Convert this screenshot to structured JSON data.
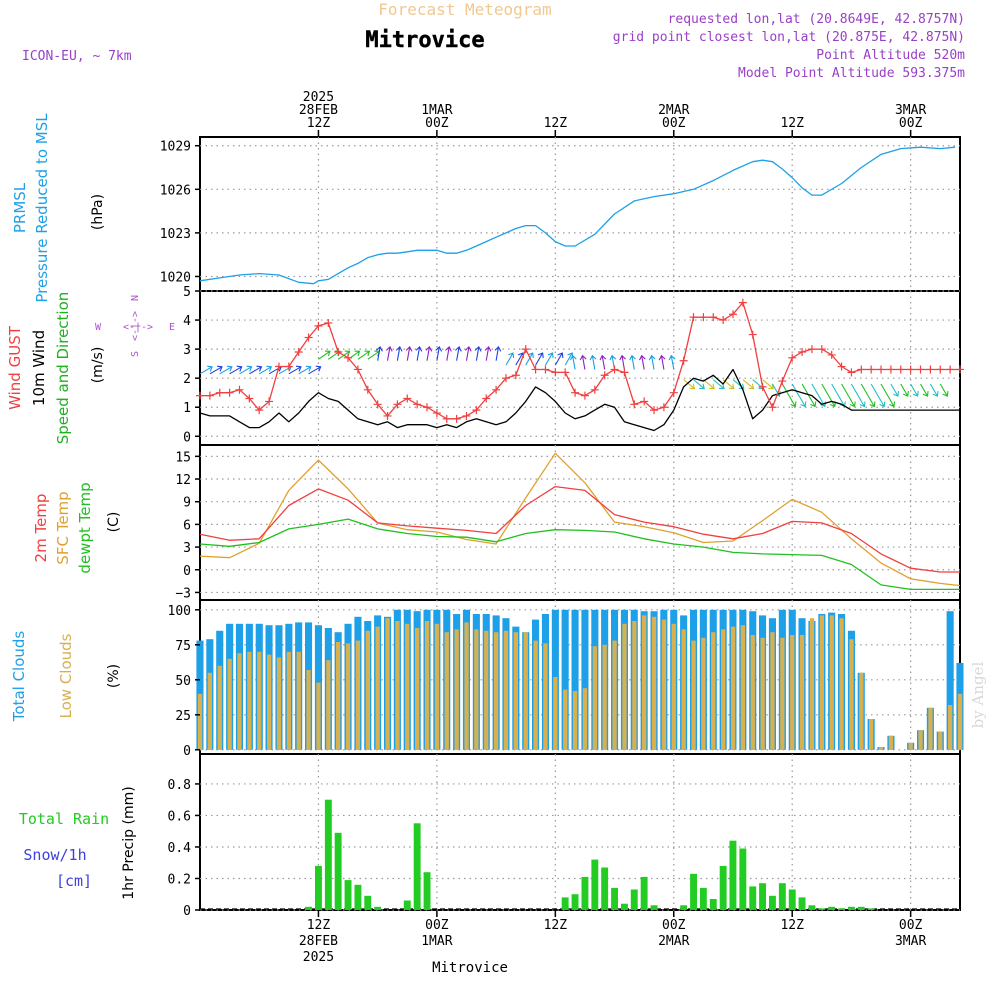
{
  "header": {
    "forecast_title": "Forecast Meteogram",
    "location": "Mitrovice",
    "model": "ICON-EU, ~ 7km",
    "requested": "requested lon,lat (20.8649E, 42.8757N)",
    "grid_point": "grid point closest lon,lat (20.875E, 42.875N)",
    "point_altitude": "Point Altitude 520m",
    "model_altitude": "Model Point Altitude 593.375m",
    "footer": "Mitrovice",
    "watermark": "by Angel"
  },
  "colors": {
    "pressure": "#1ea0e8",
    "gust": "#f04040",
    "wind": "#000000",
    "wind_label": "#20b020",
    "temp2m": "#f04040",
    "sfc": "#e0a030",
    "dewpt": "#20c020",
    "total_cloud": "#1ea0e8",
    "low_cloud": "#d8b050",
    "rain": "#22cc22",
    "snow": "#4040e0",
    "header": "#9a3fc7",
    "forecast_title": "#f0c890",
    "compass": "#b050d0",
    "arrow_palette": [
      "#2040e0",
      "#18a0e0",
      "#20c020",
      "#9020c0",
      "#d0c020",
      "#20c0c0"
    ]
  },
  "time_axis": {
    "top_ticks": [
      {
        "hour": 12,
        "lines": [
          "2025",
          "28FEB",
          "12Z"
        ]
      },
      {
        "hour": 24,
        "lines": [
          "1MAR",
          "00Z"
        ]
      },
      {
        "hour": 36,
        "lines": [
          "12Z"
        ]
      },
      {
        "hour": 48,
        "lines": [
          "2MAR",
          "00Z"
        ]
      },
      {
        "hour": 60,
        "lines": [
          "12Z"
        ]
      },
      {
        "hour": 72,
        "lines": [
          "3MAR",
          "00Z"
        ]
      }
    ],
    "bottom_ticks": [
      {
        "hour": 12,
        "lines": [
          "12Z",
          "28FEB",
          "2025"
        ]
      },
      {
        "hour": 24,
        "lines": [
          "00Z",
          "1MAR"
        ]
      },
      {
        "hour": 36,
        "lines": [
          "12Z"
        ]
      },
      {
        "hour": 48,
        "lines": [
          "00Z",
          "2MAR"
        ]
      },
      {
        "hour": 60,
        "lines": [
          "12Z"
        ]
      },
      {
        "hour": 72,
        "lines": [
          "00Z",
          "3MAR"
        ]
      }
    ],
    "xlim": [
      0,
      77
    ]
  },
  "chart_data": [
    {
      "type": "line",
      "panel": "pressure",
      "labels": [
        "PRMSL",
        "Pressure Reduced to MSL"
      ],
      "ylabel": "(hPa)",
      "yticks": [
        1020,
        1023,
        1026,
        1029
      ],
      "ylim": [
        1019.0,
        1029.6
      ],
      "x": [
        0,
        2,
        4,
        6,
        8,
        10,
        11.5,
        12,
        13,
        14,
        15,
        16,
        17,
        18,
        19,
        20,
        21,
        22,
        23,
        24,
        25,
        26,
        27,
        28,
        29,
        30,
        31,
        32,
        33,
        34,
        35,
        36,
        37,
        38,
        40,
        42,
        44,
        46,
        48,
        50,
        52,
        54,
        56,
        57,
        58,
        59,
        60,
        61,
        62,
        63,
        65,
        67,
        69,
        71,
        73,
        75,
        76.5
      ],
      "values": [
        1019.7,
        1019.9,
        1020.1,
        1020.2,
        1020.1,
        1019.6,
        1019.5,
        1019.7,
        1019.8,
        1020.2,
        1020.6,
        1020.9,
        1021.3,
        1021.5,
        1021.6,
        1021.6,
        1021.7,
        1021.8,
        1021.8,
        1021.8,
        1021.6,
        1021.6,
        1021.8,
        1022.1,
        1022.4,
        1022.7,
        1023.0,
        1023.3,
        1023.5,
        1023.5,
        1023.0,
        1022.4,
        1022.1,
        1022.1,
        1022.9,
        1024.3,
        1025.2,
        1025.5,
        1025.7,
        1026.0,
        1026.6,
        1027.3,
        1027.9,
        1028.0,
        1027.9,
        1027.4,
        1026.8,
        1026.1,
        1025.6,
        1025.6,
        1026.4,
        1027.5,
        1028.4,
        1028.8,
        1028.9,
        1028.8,
        1028.9
      ]
    },
    {
      "type": "line",
      "panel": "wind",
      "labels": [
        "Wind GUST",
        "10m Wind",
        "Speed and Direction"
      ],
      "ylabel": "(m/s)",
      "compass": {
        "west": "W",
        "east": "E",
        "north": "N",
        "south": "S",
        "arrow": "<-|->"
      },
      "yticks": [
        0,
        1,
        2,
        3,
        4,
        5
      ],
      "ylim": [
        -0.3,
        5
      ],
      "x": [
        0,
        1,
        2,
        3,
        4,
        5,
        6,
        7,
        8,
        9,
        10,
        11,
        12,
        13,
        14,
        15,
        16,
        17,
        18,
        19,
        20,
        21,
        22,
        23,
        24,
        25,
        26,
        27,
        28,
        29,
        30,
        31,
        32,
        33,
        34,
        35,
        36,
        37,
        38,
        39,
        40,
        41,
        42,
        43,
        44,
        45,
        46,
        47,
        48,
        49,
        50,
        51,
        52,
        53,
        54,
        55,
        56,
        57,
        58,
        59,
        60,
        61,
        62,
        63,
        64,
        65,
        66,
        67,
        68,
        69,
        70,
        71,
        72,
        73,
        74,
        75,
        76,
        77
      ],
      "series": [
        {
          "name": "Wind GUST",
          "values": [
            1.4,
            1.4,
            1.5,
            1.5,
            1.6,
            1.3,
            0.9,
            1.2,
            2.4,
            2.4,
            2.9,
            3.4,
            3.8,
            3.9,
            2.9,
            2.7,
            2.3,
            1.6,
            1.1,
            0.7,
            1.1,
            1.3,
            1.1,
            1.0,
            0.8,
            0.6,
            0.6,
            0.7,
            0.9,
            1.3,
            1.6,
            2.0,
            2.1,
            3.0,
            2.3,
            2.3,
            2.2,
            2.2,
            1.5,
            1.4,
            1.6,
            2.1,
            2.3,
            2.2,
            1.1,
            1.2,
            0.9,
            1.0,
            1.5,
            2.6,
            4.1,
            4.1,
            4.1,
            4.0,
            4.2,
            4.6,
            3.5,
            1.7,
            1.0,
            1.9,
            2.7,
            2.9,
            3.0,
            3.0,
            2.8,
            2.4,
            2.2,
            2.3,
            2.3,
            2.3,
            2.3,
            2.3,
            2.3,
            2.3,
            2.3,
            2.3,
            2.3,
            2.3
          ]
        },
        {
          "name": "10m Wind",
          "values": [
            0.8,
            0.7,
            0.7,
            0.7,
            0.5,
            0.3,
            0.3,
            0.5,
            0.8,
            0.5,
            0.8,
            1.2,
            1.5,
            1.3,
            1.2,
            0.9,
            0.6,
            0.5,
            0.4,
            0.5,
            0.3,
            0.4,
            0.4,
            0.4,
            0.3,
            0.4,
            0.3,
            0.5,
            0.6,
            0.5,
            0.4,
            0.5,
            0.8,
            1.2,
            1.7,
            1.5,
            1.2,
            0.8,
            0.6,
            0.7,
            0.9,
            1.1,
            1.0,
            0.5,
            0.4,
            0.3,
            0.2,
            0.4,
            0.9,
            1.7,
            2.0,
            1.9,
            2.1,
            1.8,
            2.3,
            1.6,
            0.6,
            0.9,
            1.4,
            1.5,
            1.6,
            1.5,
            1.4,
            1.1,
            1.2,
            1.1,
            0.9,
            0.9,
            0.9,
            0.9,
            0.9,
            0.9,
            0.9,
            0.9,
            0.9,
            0.9,
            0.9,
            0.9
          ]
        }
      ]
    },
    {
      "type": "line",
      "panel": "temperature",
      "labels": [
        "2m Temp",
        "SFC Temp",
        "dewpt Temp"
      ],
      "ylabel": "(C)",
      "yticks": [
        -3,
        0,
        3,
        6,
        9,
        12,
        15
      ],
      "ylim": [
        -4,
        16.5
      ],
      "x": [
        0,
        3,
        6,
        9,
        12,
        15,
        18,
        21,
        24,
        27,
        30,
        33,
        36,
        39,
        42,
        45,
        48,
        51,
        54,
        57,
        60,
        63,
        66,
        69,
        72,
        75,
        77
      ],
      "series": [
        {
          "name": "2m Temp",
          "values": [
            4.7,
            3.9,
            4.1,
            8.5,
            10.7,
            9.2,
            6.2,
            5.8,
            5.5,
            5.2,
            4.8,
            8.5,
            11.0,
            10.5,
            7.3,
            6.3,
            5.7,
            4.7,
            4.1,
            4.8,
            6.4,
            6.2,
            4.8,
            2.1,
            0.2,
            -0.3,
            -0.3
          ]
        },
        {
          "name": "SFC Temp",
          "values": [
            1.8,
            1.6,
            3.5,
            10.5,
            14.5,
            10.7,
            6.2,
            5.3,
            5.0,
            4.0,
            3.4,
            9.5,
            15.4,
            11.5,
            6.3,
            5.7,
            4.9,
            3.6,
            3.8,
            6.5,
            9.3,
            7.6,
            4.1,
            0.9,
            -1.2,
            -1.8,
            -2.1
          ]
        },
        {
          "name": "dewpt Temp",
          "values": [
            3.4,
            3.1,
            3.6,
            5.4,
            6.0,
            6.7,
            5.4,
            4.8,
            4.4,
            4.3,
            3.7,
            4.8,
            5.3,
            5.2,
            5.0,
            4.1,
            3.4,
            3.0,
            2.3,
            2.1,
            2.0,
            1.9,
            0.7,
            -2.0,
            -2.6,
            -2.6,
            -2.6
          ]
        }
      ]
    },
    {
      "type": "bar",
      "panel": "clouds",
      "labels": [
        "Total Clouds",
        "Low Clouds"
      ],
      "ylabel": "(%)",
      "yticks": [
        0,
        25,
        50,
        75,
        100
      ],
      "ylim": [
        -3,
        107
      ],
      "x": [
        0,
        1,
        2,
        3,
        4,
        5,
        6,
        7,
        8,
        9,
        10,
        11,
        12,
        13,
        14,
        15,
        16,
        17,
        18,
        19,
        20,
        21,
        22,
        23,
        24,
        25,
        26,
        27,
        28,
        29,
        30,
        31,
        32,
        33,
        34,
        35,
        36,
        37,
        38,
        39,
        40,
        41,
        42,
        43,
        44,
        45,
        46,
        47,
        48,
        49,
        50,
        51,
        52,
        53,
        54,
        55,
        56,
        57,
        58,
        59,
        60,
        61,
        62,
        63,
        64,
        65,
        66,
        67,
        68,
        69,
        70,
        71,
        72,
        73,
        74,
        75,
        76,
        77
      ],
      "series": [
        {
          "name": "Total Clouds",
          "values": [
            78,
            79,
            85,
            90,
            90,
            90,
            90,
            89,
            89,
            90,
            91,
            91,
            89,
            87,
            84,
            90,
            95,
            92,
            96,
            95,
            100,
            100,
            99,
            100,
            100,
            100,
            97,
            100,
            97,
            97,
            96,
            94,
            88,
            84,
            93,
            97,
            100,
            100,
            100,
            100,
            100,
            100,
            100,
            100,
            100,
            99,
            99,
            100,
            100,
            96,
            100,
            100,
            100,
            100,
            100,
            100,
            99,
            96,
            94,
            100,
            100,
            94,
            92,
            97,
            98,
            97,
            85,
            55,
            22,
            2,
            10,
            0,
            5,
            14,
            30,
            13,
            99,
            62
          ]
        },
        {
          "name": "Low Clouds",
          "values": [
            40,
            55,
            60,
            65,
            69,
            70,
            70,
            68,
            66,
            70,
            70,
            57,
            48,
            64,
            77,
            76,
            78,
            85,
            88,
            94,
            92,
            90,
            87,
            92,
            90,
            84,
            86,
            91,
            86,
            85,
            84,
            85,
            84,
            84,
            78,
            76,
            52,
            43,
            42,
            44,
            74,
            75,
            78,
            90,
            92,
            96,
            95,
            93,
            90,
            86,
            78,
            80,
            84,
            86,
            88,
            89,
            82,
            80,
            84,
            80,
            82,
            82,
            94,
            96,
            96,
            94,
            79,
            55,
            22,
            2,
            10,
            0,
            5,
            14,
            30,
            13,
            32,
            40
          ]
        }
      ]
    },
    {
      "type": "bar",
      "panel": "precipitation",
      "labels": [
        "Total Rain",
        "Snow/1h",
        "[cm]"
      ],
      "ylabel": "1hr Precip (mm)",
      "yticks": [
        0,
        0.2,
        0.4,
        0.6,
        0.8
      ],
      "ylim": [
        0,
        0.99
      ],
      "x": [
        0,
        1,
        2,
        3,
        4,
        5,
        6,
        7,
        8,
        9,
        10,
        11,
        12,
        13,
        14,
        15,
        16,
        17,
        18,
        19,
        20,
        21,
        22,
        23,
        24,
        25,
        26,
        27,
        28,
        29,
        30,
        31,
        32,
        33,
        34,
        35,
        36,
        37,
        38,
        39,
        40,
        41,
        42,
        43,
        44,
        45,
        46,
        47,
        48,
        49,
        50,
        51,
        52,
        53,
        54,
        55,
        56,
        57,
        58,
        59,
        60,
        61,
        62,
        63,
        64,
        65,
        66,
        67,
        68,
        69,
        70,
        71,
        72,
        73,
        74,
        75,
        76,
        77
      ],
      "series": [
        {
          "name": "Total Rain",
          "values": [
            0,
            0,
            0,
            0,
            0,
            0,
            0,
            0,
            0,
            0,
            0,
            0.02,
            0.28,
            0.7,
            0.49,
            0.19,
            0.16,
            0.09,
            0.02,
            0,
            0,
            0.06,
            0.55,
            0.24,
            0,
            0,
            0,
            0,
            0,
            0,
            0,
            0,
            0,
            0,
            0,
            0,
            0,
            0.08,
            0.1,
            0.21,
            0.32,
            0.27,
            0.14,
            0.04,
            0.13,
            0.21,
            0.03,
            0,
            0,
            0.03,
            0.23,
            0.14,
            0.07,
            0.28,
            0.44,
            0.39,
            0.15,
            0.17,
            0.09,
            0.17,
            0.13,
            0.08,
            0.03,
            0.01,
            0.02,
            0.01,
            0.02,
            0.02,
            0.01,
            0,
            0,
            0,
            0,
            0,
            0,
            0,
            0,
            0
          ]
        },
        {
          "name": "Snow/1h",
          "values": [
            0,
            0,
            0,
            0,
            0,
            0,
            0,
            0,
            0,
            0,
            0,
            0,
            0,
            0,
            0,
            0,
            0,
            0,
            0,
            0,
            0,
            0,
            0,
            0,
            0,
            0,
            0,
            0,
            0,
            0,
            0,
            0,
            0,
            0,
            0,
            0,
            0,
            0,
            0,
            0,
            0,
            0,
            0,
            0,
            0,
            0,
            0,
            0,
            0,
            0,
            0,
            0,
            0,
            0,
            0,
            0,
            0,
            0,
            0,
            0,
            0,
            0,
            0,
            0,
            0,
            0,
            0,
            0,
            0,
            0,
            0,
            0,
            0,
            0,
            0,
            0,
            0,
            0
          ]
        }
      ]
    }
  ]
}
